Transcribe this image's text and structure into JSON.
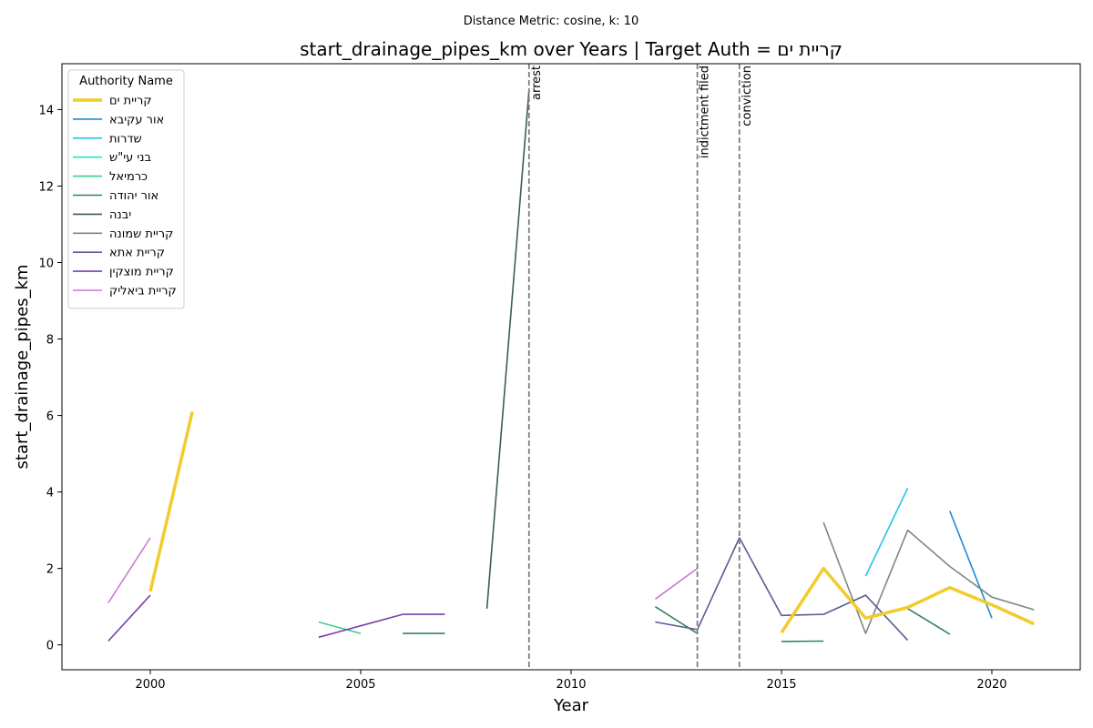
{
  "chart_data": {
    "type": "line",
    "suptitle": "Distance Metric: cosine, k: 10",
    "title": "start_drainage_pipes_km over Years | Target Auth = קריית ים",
    "xlabel": "Year",
    "ylabel": "start_drainage_pipes_km",
    "xlim": [
      1997.9,
      2022.1
    ],
    "ylim": [
      -0.65,
      15.2
    ],
    "xticks": [
      2000,
      2005,
      2010,
      2015,
      2020
    ],
    "yticks": [
      0,
      2,
      4,
      6,
      8,
      10,
      12,
      14
    ],
    "grid": false,
    "legend": {
      "title": "Authority Name",
      "placement": "top-left"
    },
    "events": [
      {
        "x": 2009,
        "label": "arrest"
      },
      {
        "x": 2013,
        "label": "indictment filed"
      },
      {
        "x": 2014,
        "label": "conviction"
      }
    ],
    "series": [
      {
        "name": "קריית ים",
        "color": "#f2cc2a",
        "target": true,
        "segments": [
          [
            [
              2000,
              1.4
            ],
            [
              2001,
              6.1
            ]
          ],
          [
            [
              2015,
              0.32
            ],
            [
              2016,
              2.0
            ],
            [
              2017,
              0.7
            ],
            [
              2018,
              0.98
            ],
            [
              2019,
              1.5
            ],
            [
              2020,
              1.05
            ],
            [
              2021,
              0.55
            ]
          ]
        ]
      },
      {
        "name": "אור עקיבא",
        "color": "#1f8ad6",
        "segments": [
          [
            [
              2019,
              3.5
            ],
            [
              2020,
              0.7
            ]
          ]
        ]
      },
      {
        "name": "שדרות",
        "color": "#29c3ea",
        "segments": [
          [
            [
              2017,
              1.8
            ],
            [
              2018,
              4.1
            ]
          ]
        ]
      },
      {
        "name": "בני עי\"ש",
        "color": "#2ee0c4",
        "segments": []
      },
      {
        "name": "כרמיאל",
        "color": "#36d08c",
        "segments": [
          [
            [
              2004,
              0.6
            ],
            [
              2005,
              0.3
            ]
          ]
        ]
      },
      {
        "name": "אור יהודה",
        "color": "#318062",
        "segments": [
          [
            [
              2006,
              0.3
            ],
            [
              2007,
              0.3
            ]
          ],
          [
            [
              2012,
              1.0
            ],
            [
              2013,
              0.3
            ]
          ],
          [
            [
              2015,
              0.09
            ],
            [
              2016,
              0.1
            ]
          ],
          [
            [
              2018,
              0.95
            ],
            [
              2019,
              0.28
            ]
          ]
        ]
      },
      {
        "name": "יבנה",
        "color": "#3a5d52",
        "segments": [
          [
            [
              2008,
              0.95
            ],
            [
              2009,
              14.5
            ]
          ]
        ]
      },
      {
        "name": "קריית שמונה",
        "color": "#7b8886",
        "segments": [
          [
            [
              2016,
              3.2
            ],
            [
              2017,
              0.3
            ],
            [
              2018,
              3.0
            ],
            [
              2019,
              2.05
            ],
            [
              2020,
              1.25
            ],
            [
              2021,
              0.92
            ]
          ]
        ]
      },
      {
        "name": "קריית אתא",
        "color": "#5a5c92",
        "segments": [
          [
            [
              2012,
              0.6
            ],
            [
              2013,
              0.4
            ],
            [
              2014,
              2.8
            ],
            [
              2015,
              0.77
            ],
            [
              2016,
              0.8
            ],
            [
              2017,
              1.3
            ],
            [
              2018,
              0.12
            ]
          ]
        ]
      },
      {
        "name": "קריית מוצקין",
        "color": "#7a3fa9",
        "segments": [
          [
            [
              1999,
              0.1
            ],
            [
              2000,
              1.3
            ]
          ],
          [
            [
              2004,
              0.2
            ],
            [
              2005,
              0.5
            ],
            [
              2006,
              0.8
            ],
            [
              2007,
              0.8
            ]
          ]
        ]
      },
      {
        "name": "קריית ביאליק",
        "color": "#c97ad3",
        "segments": [
          [
            [
              1999,
              1.1
            ],
            [
              2000,
              2.8
            ]
          ],
          [
            [
              2012,
              1.2
            ],
            [
              2013,
              2.0
            ]
          ]
        ]
      }
    ]
  }
}
